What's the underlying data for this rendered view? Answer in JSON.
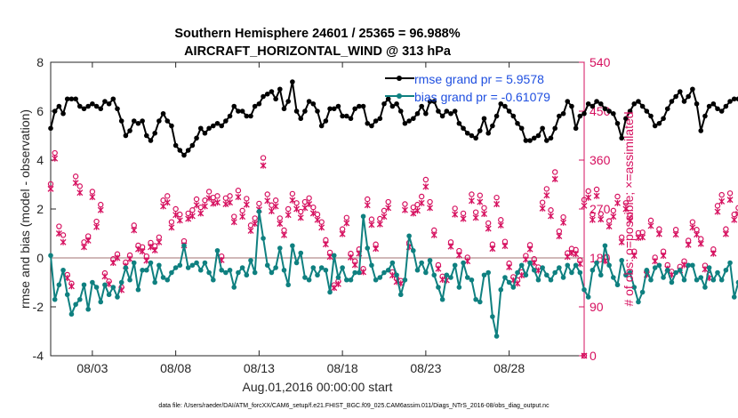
{
  "title_line1": "Southern Hemisphere 24601 / 25365 = 96.988%",
  "title_line2": "AIRCRAFT_HORIZONTAL_WIND @ 313 hPa",
  "ylabel": "rmse and bias (model - observation)",
  "y2label": "# of obs: o=possible; ×=assimilated",
  "xlabel": "Aug.01,2016 00:00:00 start",
  "footer": "data file: /Users/raeder/DAI/ATM_forcXX/CAM6_setup/f.e21.FHIST_BGC.f09_025.CAM6assim.011/Diags_NTrS_2016-08/obs_diag_output.nc",
  "legend": {
    "rmse": "rmse grand pr = 5.9578",
    "bias": "bias grand pr = -0.61079"
  },
  "colors": {
    "rmse": "#000000",
    "bias": "#0f8080",
    "obs": "#d6105f",
    "zero": "#c0a0a0",
    "legend_text": "#1f4fe0"
  },
  "chart_data": {
    "type": "line",
    "title": "Southern Hemisphere 24601 / 25365 = 96.988% AIRCRAFT_HORIZONTAL_WIND @ 313 hPa",
    "ylim": [
      -4,
      8
    ],
    "yticks": [
      -4,
      -2,
      0,
      2,
      4,
      6,
      8
    ],
    "y2lim": [
      0,
      540
    ],
    "y2ticks": [
      0,
      90,
      180,
      270,
      360,
      450,
      540
    ],
    "xlim": [
      0.0,
      32.0
    ],
    "xticks": [
      2.5,
      7.5,
      12.5,
      17.5,
      22.5,
      27.5
    ],
    "xticklabels": [
      "08/03",
      "08/08",
      "08/13",
      "08/18",
      "08/23",
      "08/28"
    ],
    "x_start": 0.0,
    "x_step": 0.25,
    "series": [
      {
        "name": "rmse",
        "axis": "left",
        "values": [
          5.3,
          6.0,
          6.2,
          5.9,
          6.5,
          6.5,
          6.5,
          6.2,
          6.1,
          6.2,
          6.3,
          6.2,
          6.1,
          6.4,
          6.3,
          6.5,
          6.1,
          5.6,
          5.0,
          5.2,
          5.6,
          5.5,
          5.6,
          5.0,
          4.8,
          5.1,
          5.6,
          5.9,
          5.6,
          5.4,
          4.6,
          4.4,
          4.2,
          4.4,
          4.6,
          4.9,
          5.3,
          5.1,
          5.3,
          5.4,
          5.5,
          5.4,
          5.6,
          5.8,
          6.2,
          6.0,
          6.0,
          5.8,
          5.8,
          6.2,
          6.3,
          6.6,
          6.7,
          6.8,
          6.5,
          6.9,
          6.1,
          6.4,
          7.2,
          6.0,
          5.7,
          6.0,
          6.4,
          6.3,
          6.0,
          5.4,
          5.6,
          6.1,
          6.1,
          6.2,
          5.8,
          5.8,
          5.7,
          6.1,
          6.2,
          6.2,
          5.5,
          5.4,
          5.6,
          5.7,
          6.3,
          6.5,
          6.2,
          6.3,
          6.0,
          5.5,
          5.6,
          5.7,
          5.9,
          6.2,
          5.9,
          6.4,
          6.4,
          6.0,
          5.8,
          6.0,
          5.9,
          6.0,
          5.5,
          5.3,
          5.1,
          5.0,
          4.9,
          5.2,
          5.7,
          5.1,
          5.4,
          5.8,
          6.3,
          6.2,
          6.0,
          5.8,
          5.5,
          5.3,
          4.8,
          4.8,
          4.9,
          5.0,
          5.3,
          4.8,
          4.9,
          5.3,
          5.8,
          5.9,
          6.4,
          6.2,
          5.3,
          5.8,
          5.9,
          6.3,
          6.2,
          6.4,
          6.3,
          6.1,
          6.0,
          5.9,
          5.5,
          4.9,
          5.7,
          6.0,
          6.3,
          6.4,
          6.2,
          6.0,
          5.8,
          5.4,
          5.5,
          5.7,
          6.1,
          6.4,
          6.6,
          6.8,
          6.4,
          6.6,
          6.9,
          6.3,
          5.2,
          5.8,
          6.2,
          6.3,
          6.1,
          6.0,
          6.2,
          6.4,
          6.5,
          6.5,
          6.2,
          6.0,
          5.9,
          6.1,
          6.3,
          6.3,
          6.1,
          5.8,
          5.7,
          5.3,
          6.0,
          6.2,
          6.4,
          6.6,
          6.5,
          6.7,
          6.9,
          6.3,
          5.7,
          5.3,
          5.8,
          6.1,
          6.2,
          6.3,
          6.5,
          6.8,
          6.8,
          6.2,
          5.9,
          5.4,
          5.9,
          6.3,
          6.0,
          5.5,
          5.6,
          6.3,
          6.8,
          6.3,
          5.9,
          6.0,
          5.5,
          5.3,
          5.5,
          5.9,
          5.6,
          5.2,
          5.8
        ],
        "values_note": "rmse sampled every 6 hours from 00:00 Aug 01"
      },
      {
        "name": "bias",
        "axis": "left",
        "values": [
          0.1,
          -1.7,
          -1.1,
          -0.5,
          -1.5,
          -2.3,
          -1.9,
          -1.7,
          -1.1,
          -2.1,
          -1.0,
          -1.2,
          -1.8,
          -1.1,
          -1.5,
          -1.2,
          -1.6,
          -1.0,
          -0.4,
          -0.9,
          -0.2,
          -1.3,
          -0.5,
          -0.5,
          -0.2,
          -1.0,
          -0.3,
          -0.8,
          -0.9,
          -0.6,
          -0.4,
          -0.3,
          0.5,
          -0.4,
          -0.3,
          -0.2,
          -0.5,
          -0.2,
          -0.6,
          -0.9,
          0.3,
          -0.5,
          -0.6,
          -0.5,
          -1.2,
          -0.6,
          -0.4,
          -0.7,
          -0.1,
          -0.6,
          1.9,
          0.8,
          -0.3,
          -0.6,
          -0.4,
          0.4,
          -0.5,
          -1.1,
          0.5,
          -0.2,
          0.2,
          -0.8,
          -0.9,
          -0.4,
          -0.7,
          -0.4,
          -0.5,
          -1.4,
          0.1,
          -0.8,
          -0.4,
          -0.9,
          -0.9,
          -0.6,
          -0.6,
          1.7,
          0.4,
          -0.3,
          -0.9,
          -0.8,
          -0.6,
          -0.5,
          -0.2,
          -0.7,
          -1.5,
          -0.9,
          0.9,
          0.3,
          -0.5,
          -0.2,
          -0.6,
          -0.1,
          -0.7,
          -1.2,
          -1.7,
          -0.7,
          -0.8,
          -0.3,
          -1.2,
          -0.2,
          -0.8,
          -0.9,
          -1.7,
          -1.8,
          -0.7,
          -0.6,
          -2.4,
          -3.2,
          -1.3,
          -0.8,
          -1.0,
          -1.2,
          -0.6,
          -0.3,
          -0.7,
          -0.2,
          -0.5,
          -0.9,
          -0.4,
          -0.7,
          -0.9,
          -0.6,
          -0.4,
          -0.8,
          -0.3,
          -0.6,
          -0.3,
          -0.6,
          -1.3,
          -1.6,
          -0.5,
          -0.2,
          -0.7,
          0.5,
          -0.3,
          -0.8,
          -1.1,
          -0.1,
          -0.7,
          -0.6,
          -1.2,
          -1.8,
          -1.4,
          -0.5,
          -0.9,
          -0.4,
          -0.3,
          -0.8,
          -0.5,
          -1.0,
          -0.6,
          -0.5,
          -0.9,
          -0.3,
          -0.3,
          -0.9,
          -0.8,
          -1.2,
          -0.4,
          -0.9,
          -0.6,
          -0.9,
          -0.5,
          -0.2,
          -1.6,
          -1.0,
          -0.3,
          -0.5,
          -0.5,
          -0.8,
          -0.6,
          -0.4,
          -0.2,
          -0.6,
          -0.8,
          -0.5,
          -0.3,
          -0.4,
          -1.1,
          -0.7,
          -0.9,
          -1.4,
          -0.5,
          -0.9,
          -1.6,
          1.5,
          -0.4,
          -0.9,
          -0.6,
          1.2,
          -0.6,
          -1.5,
          -1.3,
          -0.3,
          -0.6,
          -1.2,
          -1.7,
          -2.1,
          -1.8,
          -0.6,
          -0.7,
          -0.4,
          -1.9,
          -1.3,
          -0.2,
          -0.5,
          -0.7,
          -0.4,
          -0.9,
          -0.5,
          -1.1,
          -1.3,
          -0.6
        ],
        "values_note": "bias sampled every 6 hours from 00:00 Aug 01"
      },
      {
        "name": "obs_possible",
        "axis": "right",
        "marker": "o",
        "values": [
          316,
          373,
          238,
          222,
          149,
          133,
          330,
          312,
          209,
          220,
          302,
          247,
          278,
          152,
          137,
          178,
          187,
          126,
          172,
          185,
          240,
          203,
          200,
          183,
          208,
          202,
          218,
          286,
          294,
          246,
          270,
          260,
          211,
          262,
          268,
          288,
          273,
          286,
          302,
          291,
          294,
          183,
          290,
          294,
          256,
          304,
          267,
          289,
          240,
          253,
          280,
          364,
          297,
          277,
          286,
          253,
          231,
          270,
          298,
          281,
          265,
          283,
          290,
          273,
          260,
          246,
          213,
          190,
          130,
          137,
          233,
          254,
          188,
          174,
          196,
          160,
          288,
          251,
          205,
          252,
          267,
          283,
          154,
          142,
          138,
          279,
          208,
          273,
          278,
          293,
          324,
          283,
          231,
          167,
          146,
          145,
          209,
          271,
          193,
          262,
          181,
          297,
          264,
          295,
          272,
          244,
          205,
          291,
          250,
          210,
          170,
          145,
          139,
          154,
          184,
          204,
          178,
          163,
          282,
          307,
          268,
          338,
          229,
          255,
          189,
          197,
          195,
          176,
          287,
          303,
          260,
          306,
          261,
          181,
          248,
          267,
          293,
          218,
          281,
          259,
          192,
          226,
          227,
          155,
          249,
          181,
          233,
          192,
          167,
          155,
          232,
          164,
          174,
          212,
          246,
          232,
          215,
          166,
          149,
          196,
          276,
          296,
          233,
          299,
          260,
          272,
          259,
          198,
          189,
          192,
          144,
          193,
          233,
          167,
          161,
          149,
          203,
          301,
          273,
          178,
          215,
          240,
          296,
          300,
          300,
          241,
          206,
          247,
          138,
          212,
          229,
          247,
          227,
          237,
          157,
          202,
          186,
          165,
          183,
          234,
          175,
          207,
          160,
          188,
          244,
          243,
          204,
          204,
          188,
          195,
          169,
          164,
          166,
          160
        ],
        "values_note": "possible obs counts per 6-hour bin"
      },
      {
        "name": "obs_assimilated",
        "axis": "right",
        "marker": "x",
        "values": [
          307,
          363,
          225,
          209,
          143,
          128,
          318,
          300,
          200,
          212,
          292,
          237,
          268,
          146,
          132,
          171,
          180,
          121,
          165,
          178,
          231,
          196,
          192,
          175,
          200,
          194,
          209,
          275,
          282,
          236,
          259,
          249,
          203,
          252,
          257,
          277,
          262,
          275,
          290,
          280,
          282,
          176,
          279,
          282,
          246,
          292,
          256,
          278,
          230,
          243,
          269,
          350,
          285,
          266,
          275,
          243,
          222,
          259,
          286,
          270,
          254,
          272,
          279,
          262,
          250,
          236,
          205,
          182,
          125,
          132,
          224,
          244,
          181,
          167,
          188,
          154,
          277,
          241,
          197,
          242,
          256,
          272,
          148,
          136,
          133,
          268,
          200,
          262,
          267,
          281,
          311,
          272,
          222,
          160,
          140,
          139,
          201,
          260,
          185,
          252,
          174,
          285,
          254,
          283,
          261,
          234,
          197,
          279,
          240,
          202,
          163,
          139,
          133,
          148,
          177,
          196,
          171,
          157,
          271,
          295,
          257,
          325,
          220,
          245,
          182,
          189,
          187,
          169,
          276,
          291,
          250,
          294,
          251,
          174,
          238,
          256,
          281,
          209,
          270,
          249,
          184,
          217,
          218,
          149,
          239,
          174,
          224,
          184,
          160,
          149,
          223,
          157,
          167,
          204,
          236,
          223,
          206,
          159,
          143,
          188,
          265,
          284,
          224,
          287,
          250,
          261,
          249,
          190,
          181,
          184,
          138,
          185,
          224,
          160,
          155,
          143,
          195,
          289,
          262,
          171,
          206,
          230,
          284,
          288,
          288,
          231,
          198,
          237,
          132,
          204,
          220,
          237,
          218,
          228,
          151,
          194,
          179,
          158,
          176,
          225,
          168,
          199,
          154,
          180,
          234,
          233,
          196,
          196,
          180,
          187,
          162,
          157,
          159,
          154
        ],
        "values_note": "assimilated obs counts per 6-hour bin"
      }
    ],
    "extra_point": {
      "name": "obs_end",
      "x": 32.0,
      "y2": 0
    }
  }
}
